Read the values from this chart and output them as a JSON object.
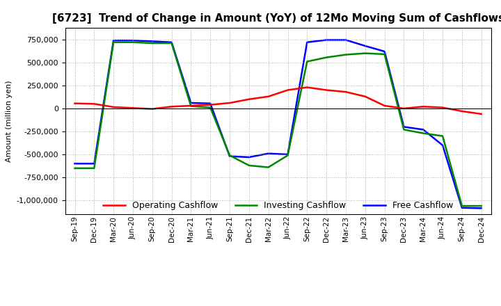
{
  "title": "[6723]  Trend of Change in Amount (YoY) of 12Mo Moving Sum of Cashflows",
  "ylabel": "Amount (million yen)",
  "x_labels": [
    "Sep-19",
    "Dec-19",
    "Mar-20",
    "Jun-20",
    "Sep-20",
    "Dec-20",
    "Mar-21",
    "Jun-21",
    "Sep-21",
    "Dec-21",
    "Mar-22",
    "Jun-22",
    "Sep-22",
    "Dec-22",
    "Mar-23",
    "Jun-23",
    "Sep-23",
    "Dec-23",
    "Mar-24",
    "Jun-24",
    "Sep-24",
    "Dec-24"
  ],
  "operating": [
    55000,
    50000,
    15000,
    5000,
    -5000,
    20000,
    30000,
    40000,
    60000,
    100000,
    130000,
    200000,
    230000,
    200000,
    180000,
    130000,
    30000,
    0,
    20000,
    10000,
    -30000,
    -60000
  ],
  "investing": [
    -650000,
    -650000,
    720000,
    720000,
    710000,
    710000,
    25000,
    10000,
    -510000,
    -620000,
    -640000,
    -510000,
    510000,
    555000,
    585000,
    600000,
    590000,
    -230000,
    -270000,
    -300000,
    -1060000,
    -1060000
  ],
  "free": [
    -600000,
    -600000,
    740000,
    740000,
    730000,
    720000,
    60000,
    55000,
    -520000,
    -530000,
    -490000,
    -500000,
    720000,
    745000,
    745000,
    680000,
    620000,
    -200000,
    -230000,
    -400000,
    -1080000,
    -1085000
  ],
  "operating_color": "#ff0000",
  "investing_color": "#008800",
  "free_color": "#0000ff",
  "ylim": [
    -1150000,
    880000
  ],
  "yticks": [
    -1000000,
    -750000,
    -500000,
    -250000,
    0,
    250000,
    500000,
    750000
  ],
  "bg_color": "#ffffff",
  "plot_bg_color": "#ffffff",
  "grid_color": "#aaaaaa",
  "linewidth": 1.8
}
